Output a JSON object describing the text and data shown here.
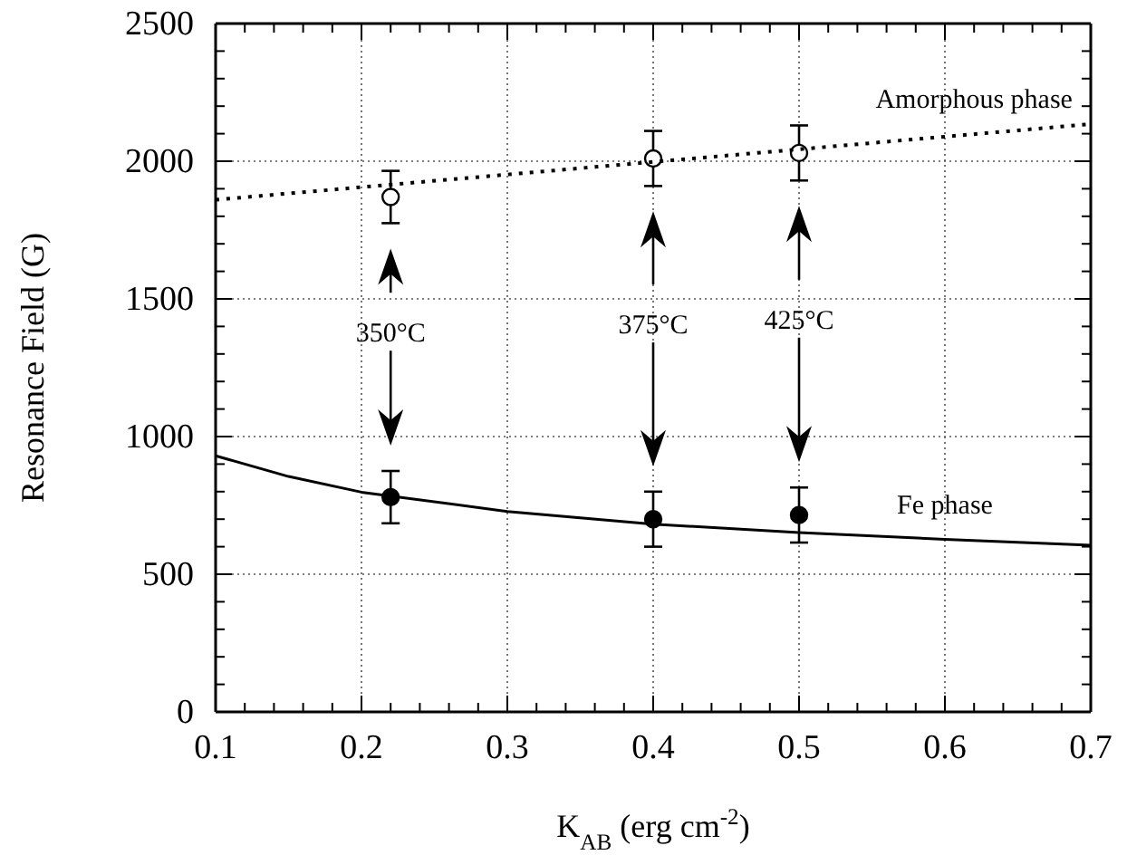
{
  "chart_data": {
    "type": "scatter",
    "xlabel": "K$_{AB}$ (erg cm$^{-2}$)",
    "ylabel": "Resonance Field (G)",
    "xlim": [
      0.1,
      0.7
    ],
    "ylim": [
      0,
      2500
    ],
    "xticks": [
      0.1,
      {
        "value": 0.12,
        "label": null
      },
      {
        "value": 0.14,
        "label": null
      },
      {
        "value": 0.16,
        "label": null
      },
      {
        "value": 0.18,
        "label": null
      },
      0.2,
      {
        "value": 0.22,
        "label": null
      },
      {
        "value": 0.24,
        "label": null
      },
      {
        "value": 0.26,
        "label": null
      },
      {
        "value": 0.28,
        "label": null
      },
      0.3,
      {
        "value": 0.32,
        "label": null
      },
      {
        "value": 0.34,
        "label": null
      },
      {
        "value": 0.36,
        "label": null
      },
      {
        "value": 0.38,
        "label": null
      },
      0.4,
      {
        "value": 0.42,
        "label": null
      },
      {
        "value": 0.44,
        "label": null
      },
      {
        "value": 0.46,
        "label": null
      },
      {
        "value": 0.48,
        "label": null
      },
      0.5,
      {
        "value": 0.52,
        "label": null
      },
      {
        "value": 0.54,
        "label": null
      },
      {
        "value": 0.56,
        "label": null
      },
      {
        "value": 0.58,
        "label": null
      },
      0.6,
      {
        "value": 0.62,
        "label": null
      },
      {
        "value": 0.64,
        "label": null
      },
      {
        "value": 0.66,
        "label": null
      },
      {
        "value": 0.68,
        "label": null
      },
      0.7
    ],
    "yticks": [
      0,
      {
        "value": 100,
        "label": null
      },
      {
        "value": 200,
        "label": null
      },
      {
        "value": 300,
        "label": null
      },
      {
        "value": 400,
        "label": null
      },
      500,
      {
        "value": 600,
        "label": null
      },
      {
        "value": 700,
        "label": null
      },
      {
        "value": 800,
        "label": null
      },
      {
        "value": 900,
        "label": null
      },
      1000,
      {
        "value": 1100,
        "label": null
      },
      {
        "value": 1200,
        "label": null
      },
      {
        "value": 1300,
        "label": null
      },
      {
        "value": 1400,
        "label": null
      },
      1500,
      {
        "value": 1600,
        "label": null
      },
      {
        "value": 1700,
        "label": null
      },
      {
        "value": 1800,
        "label": null
      },
      {
        "value": 1900,
        "label": null
      },
      2000,
      {
        "value": 2100,
        "label": null
      },
      {
        "value": 2200,
        "label": null
      },
      {
        "value": 2300,
        "label": null
      },
      {
        "value": 2400,
        "label": null
      },
      2500
    ],
    "grid": true,
    "marker": "circle",
    "series": [
      {
        "color": "#ffffff",
        "x": [
          0.22,
          0.4,
          0.5
        ],
        "values": [
          1870,
          2010,
          2030
        ],
        "errors": [
          95,
          100,
          100
        ]
      },
      {
        "color": "#000000",
        "x": [
          0.22,
          0.4,
          0.5
        ],
        "values": [
          780,
          700,
          715
        ],
        "errors": [
          95,
          100,
          100
        ]
      },
      {
        "type": "line",
        "color": "#000000",
        "line_style": "dotted",
        "marker": "none",
        "x": [
          0.1,
          0.7
        ],
        "values": [
          1860,
          2135
        ]
      },
      {
        "type": "line",
        "color": "#000000",
        "line_style": "solid",
        "marker": "none",
        "x": [
          0.1,
          0.15,
          0.2,
          0.3,
          0.4,
          0.5,
          0.6,
          0.7
        ],
        "values": [
          930,
          855,
          798,
          728,
          682,
          651,
          627,
          605
        ]
      }
    ],
    "annotations": [
      "350°C",
      "375°C",
      "425°C",
      {
        "text": "Amorphous phase",
        "x": 0.62,
        "y": 2102
      },
      {
        "text": "Fe phase",
        "x": 0.6,
        "y": 627
      }
    ]
  }
}
